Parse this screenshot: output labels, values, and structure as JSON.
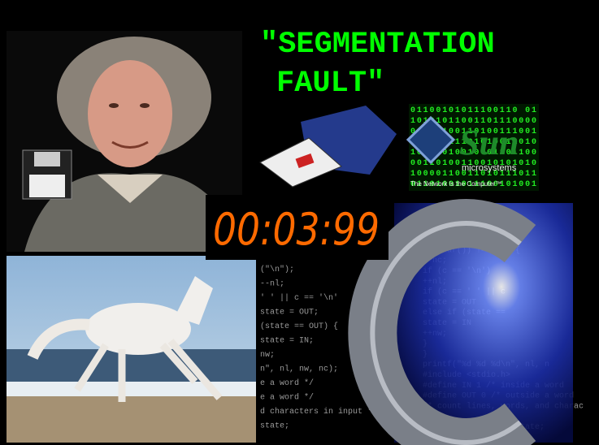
{
  "title_lines": [
    "\"SEGMENTATION",
    "FAULT\""
  ],
  "timer": "00:03:99",
  "sun_logo": {
    "name": "Sun",
    "subtitle": "microsystems",
    "tagline": "The Network Is the Computer™"
  },
  "binary_lines": [
    "01100101011100110 01",
    "10101011001101110000",
    "01110100110100111001",
    "00101011101010011010",
    "10011010010001101100",
    "00110100110010101010",
    "10000110011010111011",
    "01101001011100101001"
  ],
  "code_left": [
    "(\"\\n\");",
    "--nl;",
    "' ' || c == '\\n'",
    "state = OUT;",
    "(state == OUT) {",
    "state = IN;",
    "nw;",
    "n\", nl, nw, nc);",
    "e a word */",
    "e a word */",
    "d characters in input */",
    "state;"
  ],
  "code_right": [
    "nl, nw, nc, state;",
    "OUT;",
    "nl = 0;",
    "getchar()) != EOF) {",
    "++nc;",
    "if (c == '\\n')",
    "++nl;",
    "if (c == ' ' || c",
    "state = OUT",
    "else if (state ==",
    "state = IN",
    "++nw;",
    "}",
    "}",
    "printf(\"%d %d %d\\n\", nl, n",
    "#include <stdio.h>",
    "#define IN 1 /* inside a word",
    "#define OUT 0 /* outside a word",
    "/* count lines, words, and charac",
    "{",
    "int c, nl, nw, nc, state;"
  ]
}
